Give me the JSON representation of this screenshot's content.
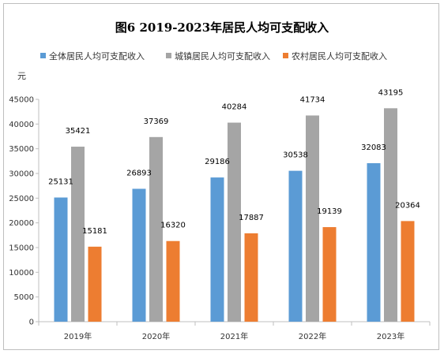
{
  "chart_data": {
    "type": "bar",
    "title": "图6 2019-2023年居民人均可支配收入",
    "ylabel": "元",
    "xlabel": "",
    "categories": [
      "2019年",
      "2020年",
      "2021年",
      "2022年",
      "2023年"
    ],
    "series": [
      {
        "name": "全体居民人均可支配收入",
        "color": "#5b9bd5",
        "values": [
          25131,
          26893,
          29186,
          30538,
          32083
        ]
      },
      {
        "name": "城镇居民人均可支配收入",
        "color": "#a5a5a5",
        "values": [
          35421,
          37369,
          40284,
          41734,
          43195
        ]
      },
      {
        "name": "农村居民人均可支配收入",
        "color": "#ed7d31",
        "values": [
          15181,
          16320,
          17887,
          19139,
          20364
        ]
      }
    ],
    "ylim": [
      0,
      45000
    ],
    "yticks": [
      "0",
      "5000",
      "10000",
      "15000",
      "20000",
      "25000",
      "30000",
      "35000",
      "40000",
      "45000"
    ],
    "grid": false,
    "legend_position": "top"
  }
}
